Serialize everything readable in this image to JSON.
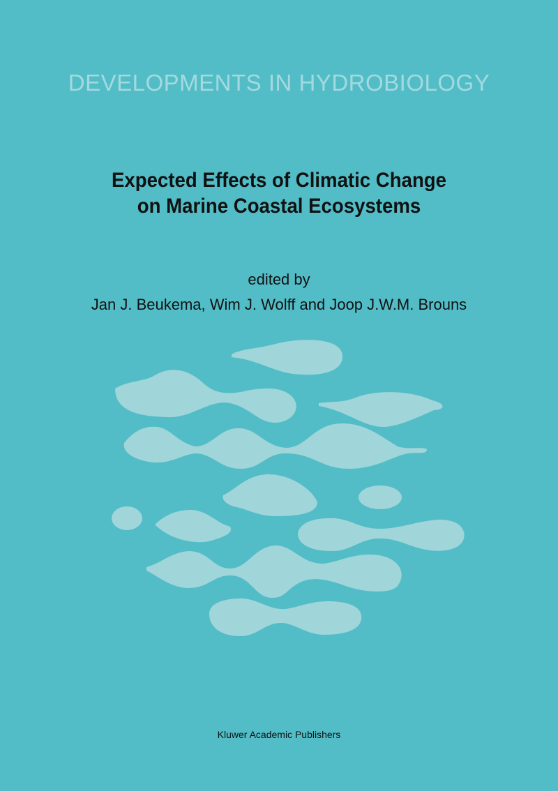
{
  "cover": {
    "series": "DEVELOPMENTS IN HYDROBIOLOGY",
    "title_line1": "Expected Effects of Climatic Change",
    "title_line2": "on Marine Coastal Ecosystems",
    "edited_by": "edited by",
    "editors": "Jan J. Beukema, Wim J. Wolff and Joop J.W.M. Brouns",
    "publisher": "Kluwer Academic Publishers"
  },
  "colors": {
    "background": "#52bdc7",
    "blobs": "#a0d5da",
    "series_text": "#a4dadf",
    "text": "#111111"
  }
}
